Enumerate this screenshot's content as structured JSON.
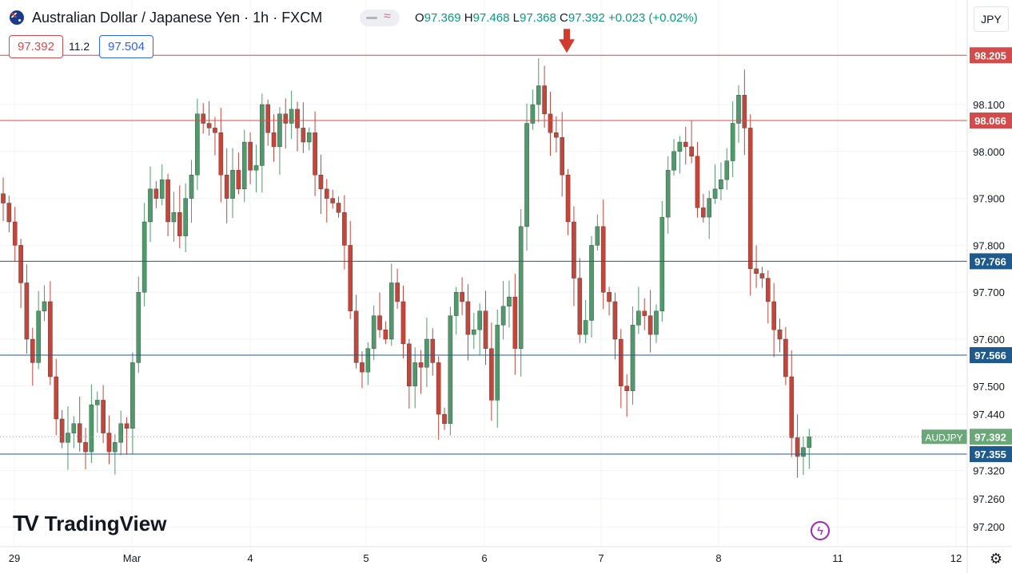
{
  "header": {
    "symbol_title": "Australian Dollar / Japanese Yen · 1h · FXCM",
    "ohlc": {
      "o_label": "O",
      "o": "97.369",
      "h_label": "H",
      "h": "97.468",
      "l_label": "L",
      "l": "97.368",
      "c_label": "C",
      "c": "97.392",
      "change": "+0.023 (+0.02%)"
    },
    "bid": "97.392",
    "spread": "11.2",
    "ask": "97.504",
    "currency": "JPY"
  },
  "branding": {
    "logo_text": "TradingView"
  },
  "colors": {
    "up": "#4f9a6a",
    "down": "#c4453a",
    "red_line": "#d44b4b",
    "blue_line": "#1f5a8c",
    "last_price_tag": "#6aa877",
    "axis_text": "#131722",
    "grid": "#f0f3fa"
  },
  "chart_data": {
    "type": "candlestick",
    "symbol": "AUDJPY",
    "ylim": [
      97.15,
      98.3
    ],
    "y_ticks": [
      "98.100",
      "98.000",
      "97.900",
      "97.800",
      "97.700",
      "97.600",
      "97.500",
      "97.440",
      "97.320",
      "97.260",
      "97.200"
    ],
    "x_ticks": [
      "29",
      "Mar",
      "4",
      "5",
      "6",
      "7",
      "8",
      "11",
      "12"
    ],
    "horizontal_lines": [
      {
        "price": 98.205,
        "label": "98.205",
        "color": "red"
      },
      {
        "price": 98.066,
        "label": "98.066",
        "color": "red"
      },
      {
        "price": 97.766,
        "label": "97.766",
        "color": "blue"
      },
      {
        "price": 97.566,
        "label": "97.566",
        "color": "blue"
      },
      {
        "price": 97.355,
        "label": "97.355",
        "color": "blue"
      }
    ],
    "last_price": {
      "symbol": "AUDJPY",
      "price": 97.392,
      "label": "97.392"
    },
    "annotation": {
      "type": "down-arrow",
      "at_price": 98.205,
      "near_x": "6/7 boundary"
    },
    "close_path": [
      97.89,
      97.85,
      97.8,
      97.72,
      97.6,
      97.55,
      97.66,
      97.68,
      97.52,
      97.43,
      97.38,
      97.4,
      97.42,
      97.38,
      97.36,
      97.46,
      97.47,
      97.4,
      97.36,
      97.38,
      97.42,
      97.41,
      97.55,
      97.7,
      97.85,
      97.92,
      97.9,
      97.94,
      97.85,
      97.87,
      97.82,
      97.9,
      97.95,
      98.08,
      98.06,
      98.05,
      98.04,
      97.95,
      97.9,
      97.96,
      97.92,
      98.02,
      97.96,
      97.97,
      98.1,
      98.04,
      98.01,
      98.08,
      98.06,
      98.09,
      98.05,
      98.02,
      98.04,
      97.95,
      97.92,
      97.9,
      97.89,
      97.87,
      97.8,
      97.66,
      97.55,
      97.53,
      97.58,
      97.65,
      97.62,
      97.6,
      97.72,
      97.68,
      97.59,
      97.5,
      97.55,
      97.54,
      97.6,
      97.55,
      97.44,
      97.42,
      97.65,
      97.7,
      97.68,
      97.61,
      97.62,
      97.66,
      97.58,
      97.47,
      97.63,
      97.67,
      97.69,
      97.58,
      97.84,
      98.06,
      98.1,
      98.14,
      98.08,
      98.04,
      98.03,
      97.95,
      97.85,
      97.73,
      97.61,
      97.64,
      97.8,
      97.84,
      97.7,
      97.68,
      97.6,
      97.5,
      97.49,
      97.63,
      97.66,
      97.65,
      97.61,
      97.66,
      97.86,
      97.96,
      98.0,
      98.02,
      98.01,
      97.99,
      97.88,
      97.86,
      97.9,
      97.92,
      97.94,
      97.98,
      98.06,
      98.12,
      98.05,
      97.75,
      97.74,
      97.73,
      97.68,
      97.62,
      97.6,
      97.52,
      97.39,
      97.35,
      97.369,
      97.392
    ]
  }
}
